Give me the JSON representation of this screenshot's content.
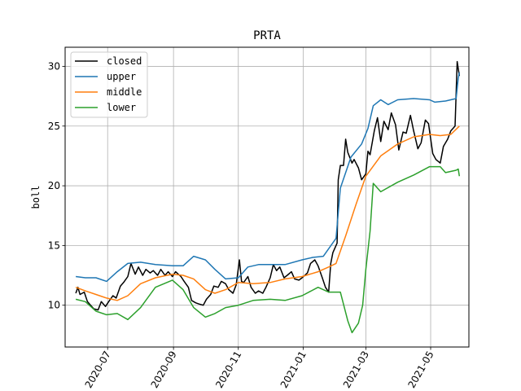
{
  "chart_data": {
    "type": "line",
    "title": "PRTA",
    "xlabel": "",
    "ylabel": "boll",
    "xlim": [
      "2020-05-22",
      "2021-06-06"
    ],
    "ylim": [
      6.5,
      31.6
    ],
    "xticks": [
      "2020-07",
      "2020-09",
      "2020-11",
      "2021-01",
      "2021-03",
      "2021-05"
    ],
    "xtick_dates": [
      "2020-07-01",
      "2020-09-01",
      "2020-11-01",
      "2021-01-01",
      "2021-03-01",
      "2021-05-01"
    ],
    "yticks": [
      10,
      15,
      20,
      25,
      30
    ],
    "grid": true,
    "legend_position": "top-left",
    "series": [
      {
        "name": "closed",
        "color": "#000000",
        "points": [
          [
            "2020-06-01",
            11.0
          ],
          [
            "2020-06-03",
            11.5
          ],
          [
            "2020-06-05",
            10.9
          ],
          [
            "2020-06-09",
            11.1
          ],
          [
            "2020-06-12",
            10.3
          ],
          [
            "2020-06-15",
            10.0
          ],
          [
            "2020-06-18",
            9.7
          ],
          [
            "2020-06-22",
            9.6
          ],
          [
            "2020-06-25",
            10.3
          ],
          [
            "2020-06-29",
            9.9
          ],
          [
            "2020-07-02",
            10.3
          ],
          [
            "2020-07-06",
            10.8
          ],
          [
            "2020-07-09",
            10.6
          ],
          [
            "2020-07-13",
            11.6
          ],
          [
            "2020-07-16",
            11.9
          ],
          [
            "2020-07-20",
            12.4
          ],
          [
            "2020-07-23",
            13.5
          ],
          [
            "2020-07-27",
            12.6
          ],
          [
            "2020-07-30",
            13.2
          ],
          [
            "2020-08-03",
            12.5
          ],
          [
            "2020-08-06",
            13.0
          ],
          [
            "2020-08-10",
            12.7
          ],
          [
            "2020-08-13",
            12.9
          ],
          [
            "2020-08-17",
            12.5
          ],
          [
            "2020-08-20",
            13.0
          ],
          [
            "2020-08-24",
            12.5
          ],
          [
            "2020-08-27",
            12.8
          ],
          [
            "2020-08-31",
            12.4
          ],
          [
            "2020-09-03",
            12.8
          ],
          [
            "2020-09-08",
            12.4
          ],
          [
            "2020-09-11",
            12.0
          ],
          [
            "2020-09-15",
            11.5
          ],
          [
            "2020-09-18",
            10.4
          ],
          [
            "2020-09-22",
            10.2
          ],
          [
            "2020-09-25",
            10.1
          ],
          [
            "2020-09-29",
            10.0
          ],
          [
            "2020-10-02",
            10.5
          ],
          [
            "2020-10-06",
            10.9
          ],
          [
            "2020-10-09",
            11.6
          ],
          [
            "2020-10-13",
            11.5
          ],
          [
            "2020-10-16",
            12.0
          ],
          [
            "2020-10-20",
            11.8
          ],
          [
            "2020-10-23",
            11.3
          ],
          [
            "2020-10-27",
            11.0
          ],
          [
            "2020-10-30",
            11.7
          ],
          [
            "2020-11-02",
            13.8
          ],
          [
            "2020-11-04",
            12.0
          ],
          [
            "2020-11-06",
            11.9
          ],
          [
            "2020-11-10",
            12.4
          ],
          [
            "2020-11-13",
            11.5
          ],
          [
            "2020-11-17",
            11.0
          ],
          [
            "2020-11-20",
            11.2
          ],
          [
            "2020-11-24",
            11.0
          ],
          [
            "2020-11-27",
            11.5
          ],
          [
            "2020-12-01",
            12.3
          ],
          [
            "2020-12-04",
            13.4
          ],
          [
            "2020-12-07",
            12.9
          ],
          [
            "2020-12-10",
            13.2
          ],
          [
            "2020-12-14",
            12.3
          ],
          [
            "2020-12-17",
            12.5
          ],
          [
            "2020-12-21",
            12.8
          ],
          [
            "2020-12-24",
            12.2
          ],
          [
            "2020-12-28",
            12.1
          ],
          [
            "2020-12-31",
            12.3
          ],
          [
            "2021-01-05",
            12.7
          ],
          [
            "2021-01-08",
            13.5
          ],
          [
            "2021-01-12",
            13.8
          ],
          [
            "2021-01-15",
            13.3
          ],
          [
            "2021-01-19",
            12.3
          ],
          [
            "2021-01-22",
            11.5
          ],
          [
            "2021-01-25",
            11.1
          ],
          [
            "2021-01-27",
            13.5
          ],
          [
            "2021-01-29",
            14.4
          ],
          [
            "2021-02-02",
            15.2
          ],
          [
            "2021-02-03",
            20.5
          ],
          [
            "2021-02-05",
            21.7
          ],
          [
            "2021-02-08",
            21.7
          ],
          [
            "2021-02-10",
            23.9
          ],
          [
            "2021-02-12",
            22.8
          ],
          [
            "2021-02-16",
            21.9
          ],
          [
            "2021-02-18",
            22.2
          ],
          [
            "2021-02-22",
            21.5
          ],
          [
            "2021-02-25",
            20.5
          ],
          [
            "2021-03-01",
            21.0
          ],
          [
            "2021-03-03",
            22.9
          ],
          [
            "2021-03-05",
            22.6
          ],
          [
            "2021-03-09",
            24.6
          ],
          [
            "2021-03-12",
            25.7
          ],
          [
            "2021-03-15",
            23.7
          ],
          [
            "2021-03-18",
            25.4
          ],
          [
            "2021-03-22",
            24.7
          ],
          [
            "2021-03-25",
            26.1
          ],
          [
            "2021-03-29",
            25.1
          ],
          [
            "2021-04-01",
            23.0
          ],
          [
            "2021-04-05",
            24.5
          ],
          [
            "2021-04-08",
            24.4
          ],
          [
            "2021-04-12",
            25.9
          ],
          [
            "2021-04-15",
            24.6
          ],
          [
            "2021-04-19",
            23.1
          ],
          [
            "2021-04-22",
            23.6
          ],
          [
            "2021-04-26",
            25.5
          ],
          [
            "2021-04-29",
            25.2
          ],
          [
            "2021-05-03",
            22.7
          ],
          [
            "2021-05-06",
            22.2
          ],
          [
            "2021-05-10",
            21.9
          ],
          [
            "2021-05-13",
            23.3
          ],
          [
            "2021-05-17",
            23.9
          ],
          [
            "2021-05-20",
            24.6
          ],
          [
            "2021-05-24",
            25.0
          ],
          [
            "2021-05-26",
            30.4
          ],
          [
            "2021-05-28",
            29.2
          ]
        ]
      },
      {
        "name": "upper",
        "color": "#1f77b4",
        "points": [
          [
            "2020-06-01",
            12.4
          ],
          [
            "2020-06-10",
            12.3
          ],
          [
            "2020-06-20",
            12.3
          ],
          [
            "2020-06-30",
            12.0
          ],
          [
            "2020-07-10",
            12.8
          ],
          [
            "2020-07-20",
            13.5
          ],
          [
            "2020-08-01",
            13.6
          ],
          [
            "2020-08-15",
            13.4
          ],
          [
            "2020-08-31",
            13.3
          ],
          [
            "2020-09-10",
            13.3
          ],
          [
            "2020-09-20",
            14.1
          ],
          [
            "2020-10-01",
            13.8
          ],
          [
            "2020-10-10",
            13.0
          ],
          [
            "2020-10-20",
            12.2
          ],
          [
            "2020-11-01",
            12.3
          ],
          [
            "2020-11-10",
            13.2
          ],
          [
            "2020-11-20",
            13.4
          ],
          [
            "2020-12-01",
            13.4
          ],
          [
            "2020-12-15",
            13.4
          ],
          [
            "2020-12-31",
            13.8
          ],
          [
            "2021-01-10",
            14.0
          ],
          [
            "2021-01-20",
            14.1
          ],
          [
            "2021-02-01",
            15.6
          ],
          [
            "2021-02-05",
            19.8
          ],
          [
            "2021-02-15",
            22.4
          ],
          [
            "2021-02-25",
            23.5
          ],
          [
            "2021-03-03",
            24.8
          ],
          [
            "2021-03-08",
            26.7
          ],
          [
            "2021-03-15",
            27.2
          ],
          [
            "2021-03-22",
            26.8
          ],
          [
            "2021-03-31",
            27.2
          ],
          [
            "2021-04-15",
            27.3
          ],
          [
            "2021-04-30",
            27.2
          ],
          [
            "2021-05-05",
            27.0
          ],
          [
            "2021-05-15",
            27.1
          ],
          [
            "2021-05-25",
            27.3
          ],
          [
            "2021-05-27",
            29.0
          ],
          [
            "2021-05-28",
            29.5
          ]
        ]
      },
      {
        "name": "middle",
        "color": "#ff7f0e",
        "points": [
          [
            "2020-06-01",
            11.5
          ],
          [
            "2020-06-10",
            11.2
          ],
          [
            "2020-06-20",
            10.9
          ],
          [
            "2020-06-30",
            10.6
          ],
          [
            "2020-07-10",
            10.4
          ],
          [
            "2020-07-20",
            10.8
          ],
          [
            "2020-08-01",
            11.8
          ],
          [
            "2020-08-15",
            12.3
          ],
          [
            "2020-08-31",
            12.6
          ],
          [
            "2020-09-10",
            12.5
          ],
          [
            "2020-09-20",
            12.2
          ],
          [
            "2020-10-01",
            11.3
          ],
          [
            "2020-10-10",
            11.0
          ],
          [
            "2020-10-20",
            11.3
          ],
          [
            "2020-11-01",
            11.9
          ],
          [
            "2020-11-15",
            11.8
          ],
          [
            "2020-12-01",
            11.9
          ],
          [
            "2020-12-15",
            12.2
          ],
          [
            "2020-12-31",
            12.4
          ],
          [
            "2021-01-15",
            12.8
          ],
          [
            "2021-01-25",
            13.2
          ],
          [
            "2021-02-01",
            13.5
          ],
          [
            "2021-02-10",
            15.8
          ],
          [
            "2021-02-20",
            18.5
          ],
          [
            "2021-03-01",
            20.8
          ],
          [
            "2021-03-15",
            22.5
          ],
          [
            "2021-03-31",
            23.5
          ],
          [
            "2021-04-15",
            24.1
          ],
          [
            "2021-04-30",
            24.3
          ],
          [
            "2021-05-10",
            24.2
          ],
          [
            "2021-05-20",
            24.3
          ],
          [
            "2021-05-28",
            25.0
          ]
        ]
      },
      {
        "name": "lower",
        "color": "#2ca02c",
        "points": [
          [
            "2020-06-01",
            10.5
          ],
          [
            "2020-06-10",
            10.3
          ],
          [
            "2020-06-20",
            9.5
          ],
          [
            "2020-06-30",
            9.2
          ],
          [
            "2020-07-10",
            9.3
          ],
          [
            "2020-07-20",
            8.8
          ],
          [
            "2020-08-01",
            9.8
          ],
          [
            "2020-08-15",
            11.5
          ],
          [
            "2020-08-31",
            12.1
          ],
          [
            "2020-09-10",
            11.3
          ],
          [
            "2020-09-20",
            9.8
          ],
          [
            "2020-10-01",
            9.0
          ],
          [
            "2020-10-10",
            9.3
          ],
          [
            "2020-10-20",
            9.8
          ],
          [
            "2020-11-01",
            10.0
          ],
          [
            "2020-11-15",
            10.4
          ],
          [
            "2020-12-01",
            10.5
          ],
          [
            "2020-12-15",
            10.4
          ],
          [
            "2020-12-31",
            10.8
          ],
          [
            "2021-01-15",
            11.5
          ],
          [
            "2021-01-25",
            11.1
          ],
          [
            "2021-02-05",
            11.1
          ],
          [
            "2021-02-12",
            8.7
          ],
          [
            "2021-02-16",
            7.7
          ],
          [
            "2021-02-22",
            8.5
          ],
          [
            "2021-02-26",
            10.0
          ],
          [
            "2021-03-01",
            13.0
          ],
          [
            "2021-03-05",
            16.2
          ],
          [
            "2021-03-08",
            20.2
          ],
          [
            "2021-03-15",
            19.5
          ],
          [
            "2021-03-31",
            20.3
          ],
          [
            "2021-04-15",
            20.9
          ],
          [
            "2021-04-30",
            21.6
          ],
          [
            "2021-05-10",
            21.6
          ],
          [
            "2021-05-15",
            21.1
          ],
          [
            "2021-05-25",
            21.3
          ],
          [
            "2021-05-27",
            21.4
          ],
          [
            "2021-05-28",
            20.8
          ]
        ]
      }
    ]
  }
}
